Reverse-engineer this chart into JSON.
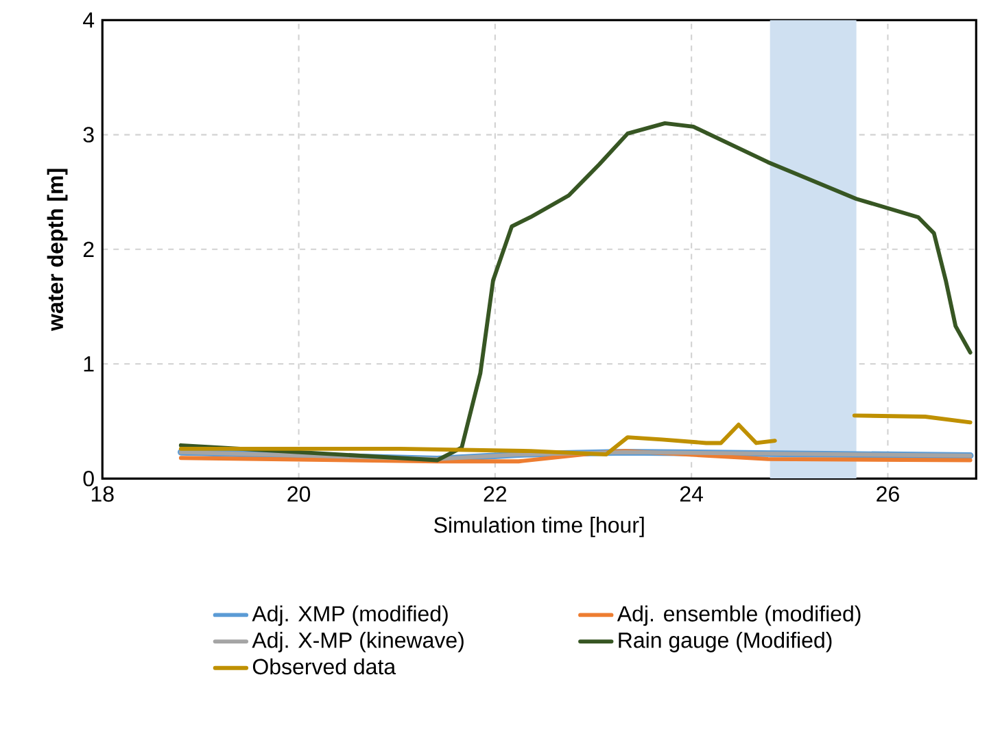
{
  "chart_data": {
    "type": "line",
    "xlabel": "Simulation time [hour]",
    "ylabel": "water depth [m]",
    "xlim": [
      18,
      26.9
    ],
    "ylim": [
      0,
      4
    ],
    "xticks": [
      18,
      20,
      22,
      24,
      26
    ],
    "yticks": [
      0,
      1,
      2,
      3,
      4
    ],
    "grid": true,
    "legend": "bottom",
    "line_style": "solid",
    "marker": "none",
    "bands": [
      {
        "axis": "x",
        "from": 24.8,
        "to": 25.68,
        "color": "#cfe0f1"
      }
    ],
    "series": [
      {
        "name": "Adj. XMP (modified)",
        "color": "#5b9bd5",
        "x": [
          18.8,
          21.41,
          22.24,
          23.32,
          26.84
        ],
        "values": [
          0.23,
          0.17,
          0.21,
          0.23,
          0.2
        ]
      },
      {
        "name": "Adj. ensemble (modified)",
        "color": "#ed7d31",
        "x": [
          18.8,
          21.41,
          22.24,
          23.0,
          23.32,
          24.78,
          26.84
        ],
        "values": [
          0.18,
          0.15,
          0.15,
          0.22,
          0.24,
          0.17,
          0.16
        ]
      },
      {
        "name": "Adj. X-MP (kinewave)",
        "color": "#a5a5a5",
        "x": [
          18.8,
          21.41,
          22.24,
          23.32,
          26.84
        ],
        "values": [
          0.23,
          0.17,
          0.21,
          0.23,
          0.2
        ]
      },
      {
        "name": "Rain gauge (Modified)",
        "color": "#375623",
        "x": [
          18.8,
          21.41,
          21.66,
          21.85,
          21.98,
          22.17,
          22.36,
          22.75,
          23.06,
          23.35,
          23.73,
          24.02,
          24.78,
          25.68,
          26.31,
          26.47,
          26.59,
          26.69,
          26.84
        ],
        "values": [
          0.29,
          0.16,
          0.27,
          0.92,
          1.73,
          2.2,
          2.28,
          2.47,
          2.74,
          3.01,
          3.1,
          3.07,
          2.76,
          2.44,
          2.28,
          2.14,
          1.73,
          1.33,
          1.1
        ]
      },
      {
        "name": "Observed data",
        "color": "#bf9000",
        "x": [
          18.8,
          19.62,
          21.03,
          22.36,
          23.13,
          23.35,
          23.7,
          24.15,
          24.3,
          24.48,
          24.66,
          24.85,
          25.2,
          25.66,
          26.38,
          26.84
        ],
        "values": [
          0.26,
          0.26,
          0.26,
          0.24,
          0.21,
          0.36,
          0.34,
          0.31,
          0.31,
          0.47,
          0.31,
          0.33,
          null,
          0.55,
          0.54,
          0.49
        ]
      }
    ]
  }
}
